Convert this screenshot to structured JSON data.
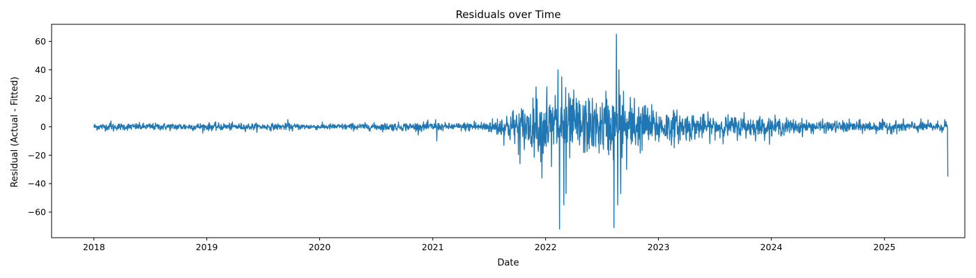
{
  "chart_data": {
    "type": "line",
    "title": "Residuals over Time",
    "xlabel": "Date",
    "ylabel": "Residual (Actual - Fitted)",
    "xlim": [
      "2017-08-17",
      "2025-09-18"
    ],
    "ylim": [
      -78,
      72
    ],
    "x_ticks": [
      "2018-01-01",
      "2019-01-01",
      "2020-01-01",
      "2021-01-01",
      "2022-01-01",
      "2023-01-01",
      "2024-01-01",
      "2025-01-01"
    ],
    "x_tick_labels": [
      "2018",
      "2019",
      "2020",
      "2021",
      "2022",
      "2023",
      "2024",
      "2025"
    ],
    "y_ticks": [
      -60,
      -40,
      -20,
      0,
      20,
      40,
      60
    ],
    "y_tick_labels": [
      "−60",
      "−40",
      "−20",
      "0",
      "20",
      "40",
      "60"
    ],
    "grid": false,
    "color": "#1f77b4",
    "series": [
      {
        "amplitude_envelope": {
          "x": [
            "2018-01-01",
            "2018-07-01",
            "2019-01-01",
            "2020-01-01",
            "2020-12-15",
            "2021-03-01",
            "2021-07-01",
            "2021-09-15",
            "2022-01-01",
            "2022-03-01",
            "2022-06-01",
            "2022-09-01",
            "2022-12-01",
            "2023-06-01",
            "2023-12-01",
            "2024-06-01",
            "2025-01-01",
            "2025-07-20"
          ],
          "y": [
            1.2,
            1.2,
            1.3,
            1.0,
            1.5,
            1.2,
            2.0,
            6.0,
            10.0,
            12.0,
            9.0,
            11.0,
            7.0,
            4.0,
            3.5,
            2.0,
            2.0,
            1.8
          ]
        },
        "spikes": {
          "x": [
            "2018-02-25",
            "2018-03-05",
            "2019-09-20",
            "2019-10-05",
            "2021-01-10",
            "2021-01-14",
            "2021-05-15",
            "2021-10-10",
            "2021-12-01",
            "2021-12-20",
            "2022-01-05",
            "2022-01-20",
            "2022-02-01",
            "2022-02-10",
            "2022-02-15",
            "2022-02-22",
            "2022-03-01",
            "2022-03-08",
            "2022-04-10",
            "2022-05-20",
            "2022-07-15",
            "2022-08-10",
            "2022-08-18",
            "2022-08-22",
            "2022-08-26",
            "2022-09-01",
            "2022-09-10",
            "2022-09-20",
            "2022-10-15",
            "2022-11-20",
            "2023-10-05",
            "2025-07-15"
          ],
          "y": [
            4,
            -3,
            5,
            -3,
            5,
            -10,
            4,
            -26,
            28,
            -36,
            28,
            -28,
            22,
            40,
            -72,
            35,
            -55,
            -47,
            20,
            20,
            25,
            -71,
            65,
            -55,
            40,
            -47,
            25,
            -30,
            20,
            15,
            10,
            5
          ]
        },
        "last_point": {
          "x": "2025-07-25",
          "y": -35
        }
      }
    ]
  }
}
